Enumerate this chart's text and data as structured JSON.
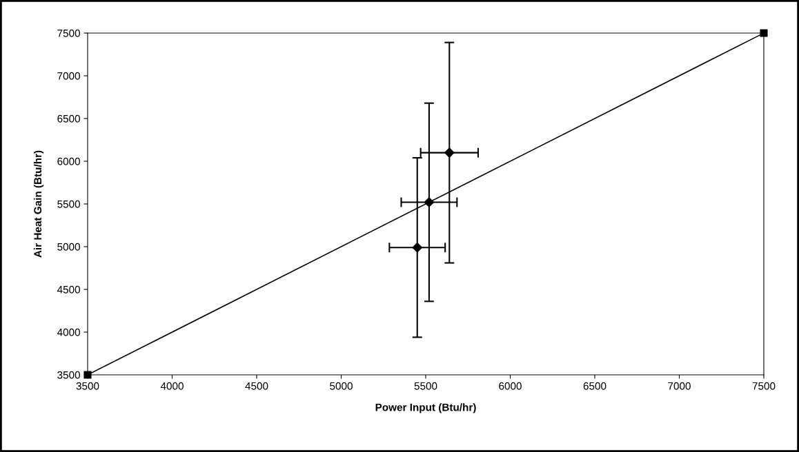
{
  "chart_data": {
    "type": "scatter",
    "xlabel": "Power Input (Btu/hr)",
    "ylabel": "Air Heat Gain (Btu/hr)",
    "xlim": [
      3500,
      7500
    ],
    "ylim": [
      3500,
      7500
    ],
    "xticks": [
      3500,
      4000,
      4500,
      5000,
      5500,
      6000,
      6500,
      7000,
      7500
    ],
    "yticks": [
      3500,
      4000,
      4500,
      5000,
      5500,
      6000,
      6500,
      7000,
      7500
    ],
    "grid": false,
    "legend": false,
    "series": [
      {
        "type": "line",
        "color": "#000000",
        "marker": "square",
        "x": [
          3500,
          7500
        ],
        "values": [
          3500,
          7500
        ]
      },
      {
        "color": "#000000",
        "marker": "diamond",
        "x": [
          5450,
          5520,
          5640
        ],
        "values": [
          4990,
          5520,
          6100
        ],
        "errors": [
          1050,
          1160,
          1290
        ],
        "xerrors": [
          165,
          165,
          170
        ]
      }
    ]
  }
}
